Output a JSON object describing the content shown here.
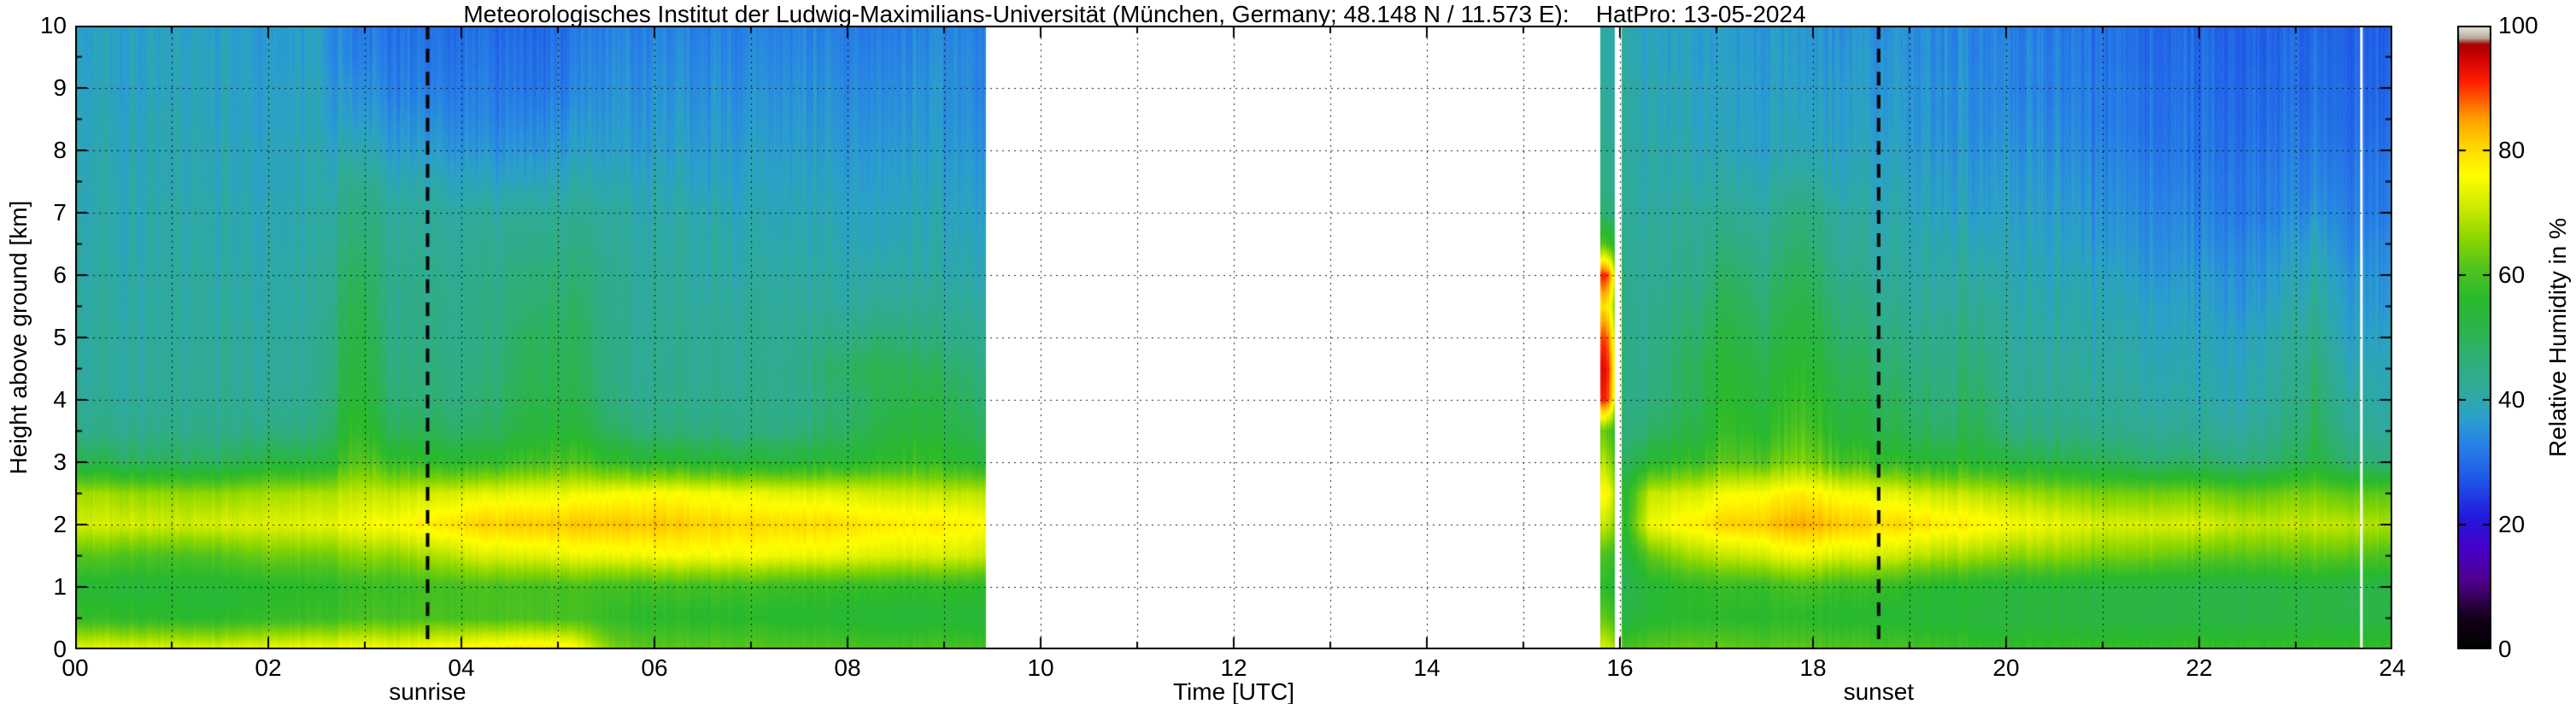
{
  "chart_data": {
    "type": "heatmap",
    "title": "Meteorologisches Institut der Ludwig-Maximilians-Universität (München, Germany; 48.148 N / 11.573 E):    HatPro: 13-05-2024",
    "xlabel": "Time [UTC]",
    "ylabel": "Height above ground [km]",
    "xlim": [
      0,
      24
    ],
    "ylim": [
      0,
      10
    ],
    "grid": true,
    "x_ticklabels": [
      "00",
      "02",
      "04",
      "06",
      "08",
      "10",
      "12",
      "14",
      "16",
      "18",
      "20",
      "22",
      "24"
    ],
    "y_ticklabels": [
      "0",
      "1",
      "2",
      "3",
      "4",
      "5",
      "6",
      "7",
      "8",
      "9",
      "10"
    ],
    "colorbar": {
      "label": "Relative Humidity in %",
      "ticks": [
        "0",
        "20",
        "40",
        "60",
        "80",
        "100"
      ],
      "range": [
        0,
        100
      ],
      "stops": [
        [
          0,
          "#000000"
        ],
        [
          5,
          "#140019"
        ],
        [
          11,
          "#50008c"
        ],
        [
          16,
          "#4600c8"
        ],
        [
          21,
          "#2318dc"
        ],
        [
          27,
          "#1e55e6"
        ],
        [
          33,
          "#2882e6"
        ],
        [
          37,
          "#2ba0cd"
        ],
        [
          41,
          "#2faaa0"
        ],
        [
          46,
          "#2fae7d"
        ],
        [
          51,
          "#2cb44d"
        ],
        [
          56,
          "#28b92d"
        ],
        [
          61,
          "#50c31e"
        ],
        [
          66,
          "#8cd700"
        ],
        [
          71,
          "#cdeb00"
        ],
        [
          76,
          "#ffff00"
        ],
        [
          81,
          "#ffd200"
        ],
        [
          85,
          "#ffa000"
        ],
        [
          88,
          "#ff5f00"
        ],
        [
          91,
          "#ff1e00"
        ],
        [
          95,
          "#cd0000"
        ],
        [
          97,
          "#a50000"
        ],
        [
          98,
          "#b4ab9b"
        ],
        [
          100,
          "#f0ebe1"
        ]
      ]
    },
    "annotations": [
      {
        "label": "sunrise",
        "x": 3.65
      },
      {
        "label": "sunset",
        "x": 18.68
      }
    ],
    "gaps": [
      [
        9.43,
        15.8
      ],
      [
        15.95,
        16.02
      ]
    ],
    "dropout_lines": [
      23.68
    ],
    "y": [
      0,
      0.5,
      1,
      1.5,
      2,
      2.5,
      3,
      3.5,
      4,
      4.5,
      5,
      5.5,
      6,
      6.5,
      7,
      7.5,
      8,
      8.5,
      9,
      9.5,
      10
    ],
    "x": [
      0,
      0.5,
      1,
      1.5,
      2,
      2.5,
      2.9,
      3.3,
      3.7,
      4.2,
      4.7,
      5.1,
      5.6,
      6,
      6.5,
      7,
      7.5,
      8,
      8.3,
      8.7,
      9,
      9.4,
      15.88,
      16.05,
      16.3,
      16.8,
      17.1,
      17.5,
      17.9,
      18.3,
      18.7,
      19,
      19.4,
      19.7,
      20,
      20.5,
      21,
      21.5,
      22,
      22.5,
      23,
      23.2,
      23.5,
      24
    ],
    "values": [
      [
        74,
        58,
        55,
        62,
        72,
        68,
        52,
        45,
        43,
        42,
        42,
        42,
        41,
        41,
        40,
        40,
        40,
        39,
        39,
        38,
        38
      ],
      [
        74,
        57,
        54,
        61,
        72,
        67,
        50,
        44,
        42,
        42,
        42,
        41,
        41,
        40,
        40,
        40,
        39,
        39,
        38,
        38,
        38
      ],
      [
        73,
        56,
        54,
        60,
        71,
        66,
        49,
        44,
        42,
        42,
        41,
        41,
        41,
        40,
        40,
        39,
        39,
        39,
        38,
        38,
        37
      ],
      [
        73,
        56,
        54,
        61,
        72,
        66,
        49,
        44,
        43,
        42,
        42,
        41,
        41,
        40,
        40,
        39,
        39,
        38,
        38,
        38,
        37
      ],
      [
        75,
        58,
        56,
        64,
        73,
        68,
        54,
        46,
        43,
        42,
        42,
        41,
        41,
        40,
        40,
        39,
        39,
        38,
        38,
        37,
        37
      ],
      [
        75,
        58,
        56,
        63,
        73,
        68,
        52,
        45,
        43,
        42,
        42,
        41,
        41,
        40,
        40,
        39,
        39,
        38,
        38,
        37,
        37
      ],
      [
        76,
        60,
        58,
        66,
        75,
        70,
        62,
        58,
        56,
        54,
        53,
        52,
        50,
        48,
        46,
        44,
        40,
        37,
        35,
        33,
        32
      ],
      [
        75,
        60,
        58,
        66,
        76,
        70,
        58,
        50,
        47,
        46,
        45,
        44,
        44,
        43,
        42,
        40,
        37,
        35,
        33,
        32,
        31
      ],
      [
        76,
        60,
        59,
        68,
        78,
        71,
        56,
        49,
        46,
        45,
        44,
        44,
        43,
        42,
        41,
        39,
        36,
        34,
        32,
        31,
        30
      ],
      [
        78,
        60,
        60,
        72,
        81,
        73,
        56,
        48,
        46,
        45,
        44,
        44,
        43,
        42,
        41,
        38,
        35,
        33,
        32,
        31,
        30
      ],
      [
        80,
        61,
        60,
        73,
        82,
        74,
        60,
        54,
        52,
        51,
        50,
        48,
        47,
        45,
        43,
        39,
        36,
        34,
        32,
        31,
        30
      ],
      [
        79,
        60,
        60,
        74,
        82,
        74,
        61,
        55,
        52,
        51,
        50,
        49,
        47,
        45,
        43,
        40,
        37,
        35,
        33,
        32,
        31
      ],
      [
        64,
        57,
        59,
        74,
        82,
        75,
        57,
        48,
        45,
        44,
        44,
        43,
        43,
        42,
        41,
        39,
        37,
        36,
        35,
        34,
        33
      ],
      [
        62,
        56,
        59,
        75,
        82,
        76,
        56,
        46,
        44,
        43,
        43,
        42,
        42,
        41,
        40,
        39,
        37,
        36,
        35,
        34,
        33
      ],
      [
        62,
        56,
        59,
        75,
        81,
        75,
        55,
        46,
        44,
        43,
        43,
        42,
        41,
        41,
        40,
        38,
        37,
        36,
        35,
        34,
        33
      ],
      [
        62,
        56,
        59,
        75,
        80,
        74,
        54,
        45,
        44,
        43,
        43,
        42,
        41,
        40,
        39,
        38,
        37,
        36,
        35,
        34,
        33
      ],
      [
        61,
        55,
        58,
        74,
        80,
        73,
        54,
        46,
        44,
        44,
        43,
        42,
        41,
        40,
        39,
        38,
        37,
        36,
        35,
        34,
        33
      ],
      [
        61,
        55,
        58,
        74,
        80,
        73,
        56,
        50,
        48,
        50,
        46,
        42,
        41,
        40,
        39,
        38,
        37,
        36,
        35,
        34,
        33
      ],
      [
        60,
        55,
        58,
        73,
        79,
        72,
        58,
        53,
        51,
        52,
        48,
        44,
        42,
        40,
        39,
        38,
        37,
        36,
        35,
        34,
        33
      ],
      [
        60,
        54,
        57,
        72,
        78,
        71,
        58,
        54,
        52,
        50,
        46,
        43,
        41,
        40,
        39,
        38,
        37,
        36,
        35,
        34,
        33
      ],
      [
        60,
        54,
        57,
        72,
        78,
        70,
        56,
        52,
        50,
        48,
        44,
        42,
        40,
        39,
        38,
        37,
        36,
        35,
        35,
        34,
        33
      ],
      [
        60,
        54,
        57,
        71,
        77,
        70,
        55,
        50,
        48,
        46,
        44,
        42,
        40,
        39,
        38,
        37,
        36,
        35,
        34,
        34,
        33
      ],
      [
        72,
        62,
        56,
        60,
        70,
        76,
        68,
        62,
        90,
        92,
        88,
        78,
        90,
        60,
        46,
        44,
        43,
        42,
        41,
        40,
        40
      ],
      [
        60,
        52,
        50,
        52,
        56,
        54,
        48,
        45,
        44,
        44,
        43,
        43,
        43,
        42,
        42,
        42,
        41,
        41,
        41,
        40,
        40
      ],
      [
        62,
        55,
        54,
        62,
        74,
        70,
        55,
        48,
        45,
        44,
        44,
        43,
        42,
        42,
        41,
        40,
        40,
        39,
        39,
        38,
        38
      ],
      [
        63,
        56,
        57,
        68,
        78,
        72,
        58,
        52,
        50,
        50,
        48,
        46,
        44,
        43,
        42,
        40,
        39,
        38,
        38,
        37,
        37
      ],
      [
        63,
        56,
        58,
        70,
        81,
        75,
        62,
        58,
        56,
        55,
        53,
        51,
        49,
        46,
        43,
        41,
        39,
        38,
        38,
        37,
        37
      ],
      [
        62,
        56,
        58,
        72,
        82,
        76,
        62,
        56,
        54,
        52,
        50,
        48,
        46,
        44,
        42,
        40,
        38,
        38,
        37,
        37,
        36
      ],
      [
        62,
        56,
        60,
        74,
        84,
        78,
        65,
        61,
        58,
        56,
        54,
        52,
        50,
        48,
        46,
        42,
        39,
        38,
        37,
        36,
        36
      ],
      [
        61,
        55,
        58,
        72,
        82,
        75,
        60,
        54,
        52,
        50,
        48,
        46,
        44,
        42,
        41,
        39,
        38,
        37,
        37,
        36,
        35
      ],
      [
        60,
        55,
        58,
        72,
        80,
        74,
        58,
        52,
        50,
        48,
        46,
        44,
        42,
        41,
        40,
        39,
        38,
        37,
        36,
        36,
        35
      ],
      [
        60,
        54,
        56,
        70,
        80,
        72,
        56,
        50,
        48,
        46,
        44,
        42,
        41,
        40,
        39,
        38,
        37,
        36,
        36,
        35,
        35
      ],
      [
        59,
        54,
        55,
        68,
        78,
        70,
        55,
        48,
        46,
        45,
        44,
        42,
        41,
        40,
        38,
        37,
        36,
        35,
        35,
        34,
        34
      ],
      [
        58,
        54,
        55,
        68,
        78,
        70,
        56,
        52,
        50,
        48,
        46,
        44,
        42,
        40,
        38,
        37,
        36,
        35,
        35,
        34,
        34
      ],
      [
        58,
        53,
        54,
        66,
        76,
        68,
        54,
        46,
        44,
        43,
        42,
        41,
        40,
        39,
        38,
        37,
        36,
        35,
        34,
        34,
        33
      ],
      [
        58,
        53,
        54,
        66,
        74,
        66,
        52,
        45,
        43,
        42,
        41,
        40,
        39,
        38,
        37,
        36,
        35,
        34,
        33,
        33,
        32
      ],
      [
        58,
        52,
        53,
        64,
        72,
        64,
        50,
        44,
        42,
        41,
        40,
        39,
        38,
        36,
        35,
        34,
        33,
        32,
        32,
        31,
        31
      ],
      [
        58,
        52,
        53,
        64,
        72,
        64,
        48,
        43,
        41,
        40,
        39,
        38,
        36,
        35,
        34,
        33,
        32,
        31,
        31,
        30,
        30
      ],
      [
        58,
        52,
        52,
        62,
        72,
        64,
        48,
        42,
        40,
        39,
        38,
        37,
        36,
        34,
        33,
        32,
        31,
        31,
        30,
        30,
        29
      ],
      [
        58,
        52,
        52,
        62,
        70,
        62,
        46,
        42,
        40,
        39,
        38,
        36,
        35,
        34,
        32,
        32,
        31,
        30,
        30,
        29,
        29
      ],
      [
        58,
        52,
        53,
        62,
        70,
        64,
        50,
        46,
        44,
        43,
        42,
        40,
        38,
        36,
        34,
        33,
        32,
        31,
        30,
        30,
        29
      ],
      [
        58,
        52,
        53,
        62,
        70,
        64,
        52,
        50,
        48,
        46,
        44,
        42,
        40,
        38,
        35,
        33,
        32,
        31,
        30,
        30,
        29
      ],
      [
        58,
        52,
        52,
        62,
        70,
        62,
        48,
        44,
        42,
        40,
        38,
        37,
        36,
        34,
        33,
        32,
        31,
        30,
        30,
        29,
        29
      ],
      [
        58,
        52,
        52,
        60,
        68,
        62,
        46,
        42,
        40,
        39,
        38,
        36,
        35,
        34,
        32,
        32,
        31,
        30,
        29,
        29,
        28
      ]
    ]
  }
}
